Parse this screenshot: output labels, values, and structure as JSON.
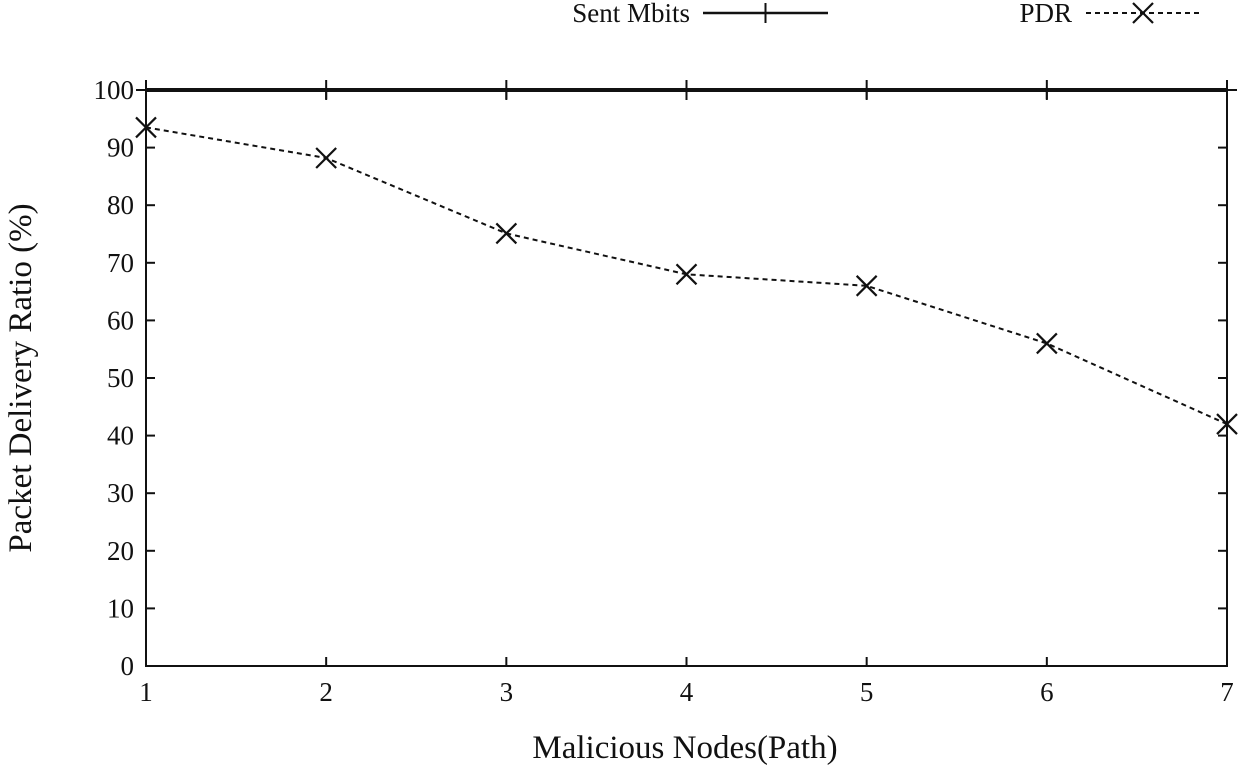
{
  "chart_data": {
    "type": "line",
    "xlabel": "Malicious Nodes(Path)",
    "ylabel": "Packet Delivery Ratio (%)",
    "xlim": [
      1,
      7
    ],
    "ylim": [
      0,
      100
    ],
    "x_ticks": [
      1,
      2,
      3,
      4,
      5,
      6,
      7
    ],
    "y_ticks": [
      0,
      10,
      20,
      30,
      40,
      50,
      60,
      70,
      80,
      90,
      100
    ],
    "grid": false,
    "legend_position": "top",
    "series": [
      {
        "name": "Sent Mbits",
        "line_style": "solid",
        "marker": "plus",
        "color": "#111111",
        "x": [
          1,
          2,
          3,
          4,
          5,
          6,
          7
        ],
        "y": [
          100,
          100,
          100,
          100,
          100,
          100,
          100
        ]
      },
      {
        "name": "PDR",
        "line_style": "dashed",
        "marker": "cross",
        "color": "#111111",
        "x": [
          1,
          2,
          3,
          4,
          5,
          6,
          7
        ],
        "y": [
          93.5,
          88.2,
          75.1,
          68.0,
          66.0,
          56.0,
          42.0
        ]
      }
    ]
  }
}
